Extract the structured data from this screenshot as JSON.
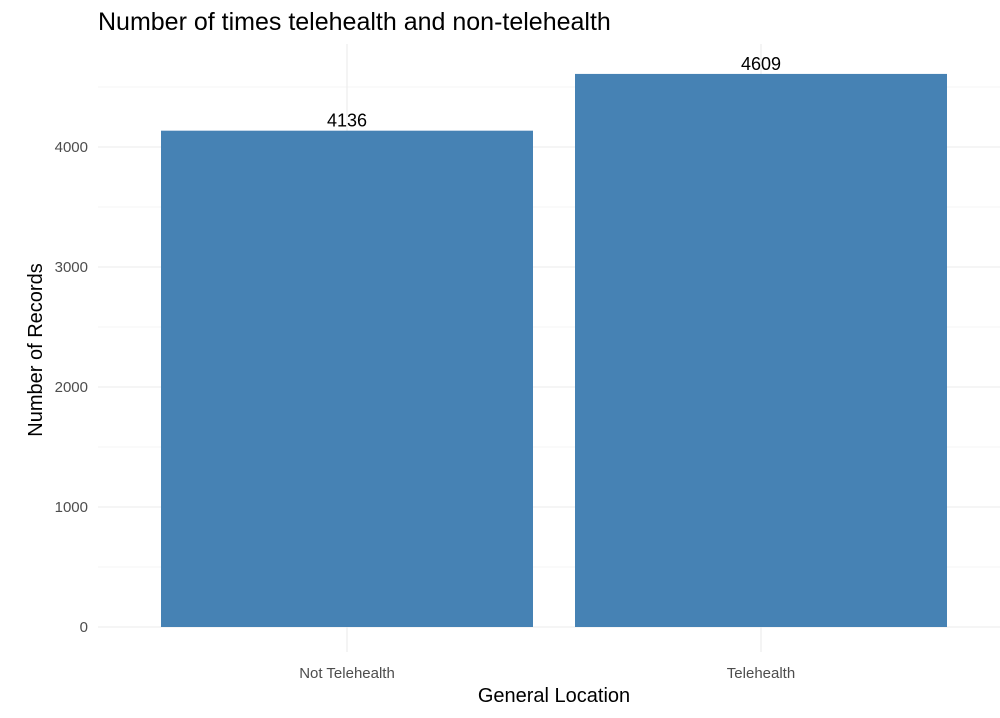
{
  "chart_data": {
    "type": "bar",
    "title": "Number of times telehealth and non-telehealth",
    "xlabel": "General Location",
    "ylabel": "Number of Records",
    "categories": [
      "Not Telehealth",
      "Telehealth"
    ],
    "values": [
      4136,
      4609
    ],
    "data_labels": [
      "4136",
      "4609"
    ],
    "yticks": [
      0,
      1000,
      2000,
      3000,
      4000
    ],
    "ytick_labels": [
      "0",
      "1000",
      "2000",
      "3000",
      "4000"
    ],
    "ylim": [
      0,
      4609
    ],
    "grid": true,
    "legend": "none",
    "bar_color": "#4682b4"
  }
}
